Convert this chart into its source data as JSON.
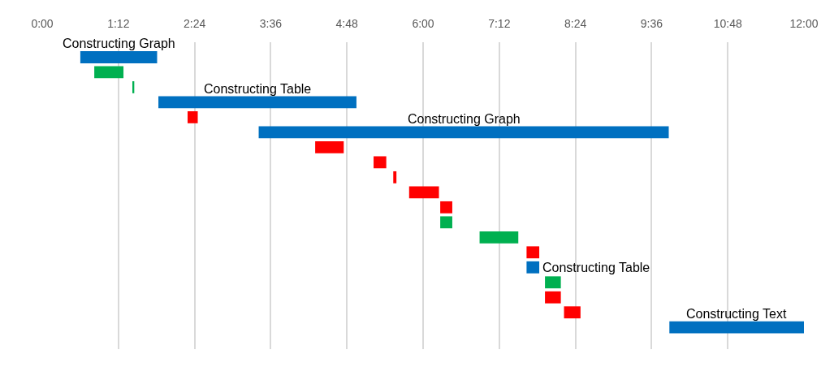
{
  "chart_data": {
    "type": "bar",
    "orientation": "horizontal",
    "categories": [
      null,
      null,
      null,
      null,
      null,
      null,
      null,
      null,
      null,
      null,
      null,
      null,
      null,
      null,
      null,
      null,
      null,
      null,
      null
    ],
    "base": [
      0.6,
      0.82,
      1.43,
      1.83,
      2.29,
      3.41,
      4.3,
      5.22,
      5.53,
      5.78,
      6.27,
      6.27,
      6.89,
      7.63,
      7.63,
      7.92,
      7.92,
      8.22,
      9.88
    ],
    "values": [
      1.21,
      0.46,
      0.02,
      3.12,
      0.16,
      6.46,
      0.45,
      0.2,
      0.05,
      0.47,
      0.19,
      0.19,
      0.61,
      0.2,
      0.2,
      0.25,
      0.25,
      0.26,
      2.12
    ],
    "colors": [
      "#0070c0",
      "#00b050",
      "#00b050",
      "#0070c0",
      "#ff0000",
      "#0070c0",
      "#ff0000",
      "#ff0000",
      "#ff0000",
      "#ff0000",
      "#ff0000",
      "#00b050",
      "#00b050",
      "#ff0000",
      "#0070c0",
      "#00b050",
      "#ff0000",
      "#ff0000",
      "#0070c0"
    ],
    "value_labels": [
      "Constructing Graph",
      null,
      null,
      "Constructing Table",
      null,
      "Constructing Graph",
      null,
      null,
      null,
      null,
      null,
      null,
      null,
      null,
      "Constructing Table",
      null,
      null,
      null,
      "Constructing Text"
    ],
    "xlim": [
      0,
      12
    ],
    "xticks": [
      {
        "value": 0,
        "label": "0:00"
      },
      {
        "value": 1.2,
        "label": "1:12"
      },
      {
        "value": 2.4,
        "label": "2:24"
      },
      {
        "value": 3.6,
        "label": "3:36"
      },
      {
        "value": 4.8,
        "label": "4:48"
      },
      {
        "value": 6,
        "label": "6:00"
      },
      {
        "value": 7.2,
        "label": "7:12"
      },
      {
        "value": 8.4,
        "label": "8:24"
      },
      {
        "value": 9.6,
        "label": "9:36"
      },
      {
        "value": 10.8,
        "label": "10:48"
      },
      {
        "value": 12,
        "label": "12:00"
      }
    ],
    "tick_labels": "x",
    "grid": "x"
  }
}
